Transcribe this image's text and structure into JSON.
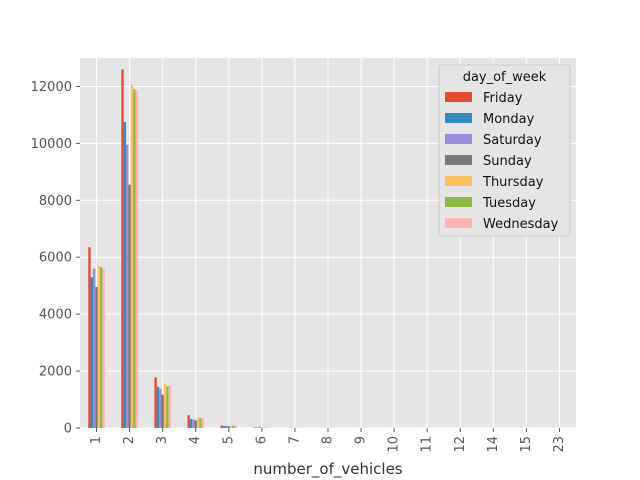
{
  "chart_data": {
    "type": "bar",
    "title": "",
    "xlabel": "number_of_vehicles",
    "ylabel": "",
    "categories": [
      "1",
      "2",
      "3",
      "4",
      "5",
      "6",
      "7",
      "8",
      "9",
      "10",
      "11",
      "12",
      "14",
      "15",
      "23"
    ],
    "ylim": [
      0,
      13000
    ],
    "yticks": [
      0,
      2000,
      4000,
      6000,
      8000,
      10000,
      12000
    ],
    "grid": true,
    "legend_title": "day_of_week",
    "legend_position": "top-right",
    "series": [
      {
        "name": "Friday",
        "color": "#E24A33",
        "values": [
          6350,
          12600,
          1780,
          450,
          90,
          15,
          4,
          2,
          1,
          1,
          0,
          0,
          0,
          0,
          0
        ]
      },
      {
        "name": "Monday",
        "color": "#348ABD",
        "values": [
          5300,
          10750,
          1450,
          320,
          70,
          10,
          3,
          1,
          0,
          0,
          1,
          0,
          0,
          0,
          0
        ]
      },
      {
        "name": "Saturday",
        "color": "#988ED5",
        "values": [
          5600,
          9950,
          1380,
          300,
          75,
          45,
          5,
          2,
          1,
          0,
          0,
          0,
          0,
          0,
          0
        ]
      },
      {
        "name": "Sunday",
        "color": "#777777",
        "values": [
          4950,
          8550,
          1170,
          270,
          60,
          8,
          3,
          1,
          0,
          1,
          0,
          0,
          0,
          0,
          1
        ]
      },
      {
        "name": "Thursday",
        "color": "#FBC15E",
        "values": [
          5700,
          12050,
          1560,
          360,
          80,
          12,
          4,
          2,
          1,
          1,
          0,
          1,
          1,
          0,
          0
        ]
      },
      {
        "name": "Tuesday",
        "color": "#8EBA42",
        "values": [
          5650,
          11900,
          1470,
          340,
          80,
          12,
          3,
          1,
          1,
          0,
          0,
          0,
          0,
          1,
          0
        ]
      },
      {
        "name": "Wednesday",
        "color": "#FFB5B8",
        "values": [
          5600,
          11850,
          1500,
          350,
          80,
          12,
          4,
          1,
          1,
          0,
          0,
          0,
          0,
          0,
          0
        ]
      }
    ]
  }
}
